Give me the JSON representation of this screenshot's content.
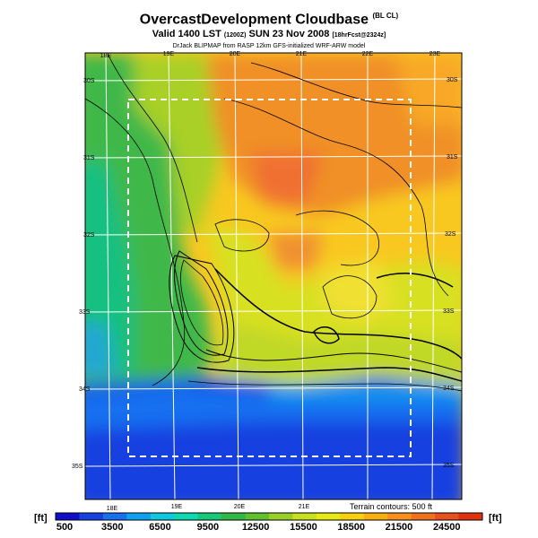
{
  "header": {
    "title": "OvercastDevelopment Cloudbase",
    "title_tag": "(BL CL)",
    "valid_prefix": "Valid 1400 LST",
    "valid_code": "(1200Z)",
    "valid_date": "SUN 23 Nov 2008",
    "valid_suffix": "[18hrFcst@2324z]",
    "credit": "DrJack BLIPMAP from RASP 12km GFS-initialized WRF-ARW model"
  },
  "map": {
    "lon_labels_top": [
      "18E",
      "19E",
      "20E",
      "21E",
      "22E",
      "23E"
    ],
    "lon_labels_bottom": [
      "18E",
      "19E",
      "20E",
      "21E"
    ],
    "lat_labels_left": [
      "30S",
      "31S",
      "32S",
      "33S",
      "34S",
      "35S"
    ],
    "lat_labels_right": [
      "30S",
      "31S",
      "32S",
      "33S",
      "34S",
      "35S"
    ],
    "terrain_note": "Terrain contours: 500 ft"
  },
  "colorbar": {
    "unit": "[ft]",
    "labels": [
      "500",
      "3500",
      "6500",
      "9500",
      "12500",
      "15500",
      "18500",
      "21500",
      "24500"
    ],
    "colors": [
      "#1010c8",
      "#1840e0",
      "#1870f0",
      "#10a0f0",
      "#10c8e0",
      "#10d8b0",
      "#18c878",
      "#30b848",
      "#60c030",
      "#98d028",
      "#c8e020",
      "#e8e818",
      "#f8d010",
      "#f8b010",
      "#f89020",
      "#f07020",
      "#e85020",
      "#e03010"
    ]
  }
}
